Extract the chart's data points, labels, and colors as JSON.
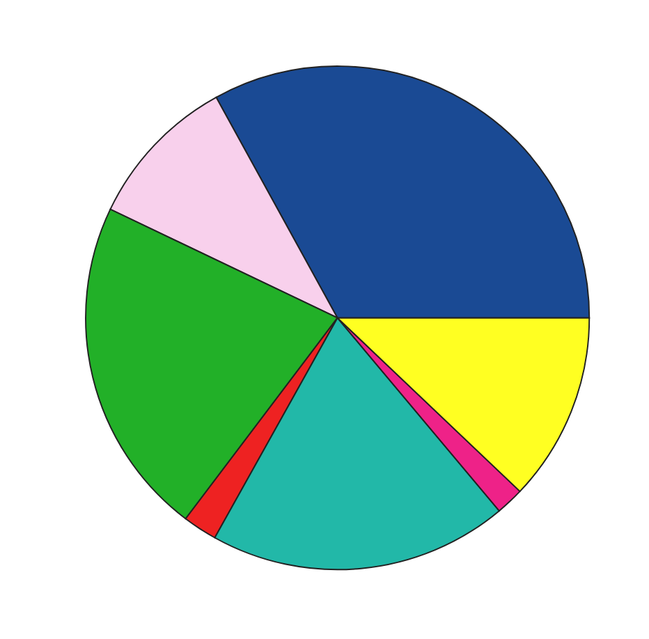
{
  "chart_data": {
    "type": "pie",
    "categories": [
      null,
      null,
      null,
      null,
      null,
      null,
      null
    ],
    "values": [
      33.0,
      9.9,
      21.8,
      2.2,
      19.2,
      1.8,
      12.1
    ],
    "colors": [
      "#1a4a94",
      "#f8d0ec",
      "#22b028",
      "#ee2222",
      "#22b8a8",
      "#ee2288",
      "#ffff22"
    ]
  }
}
